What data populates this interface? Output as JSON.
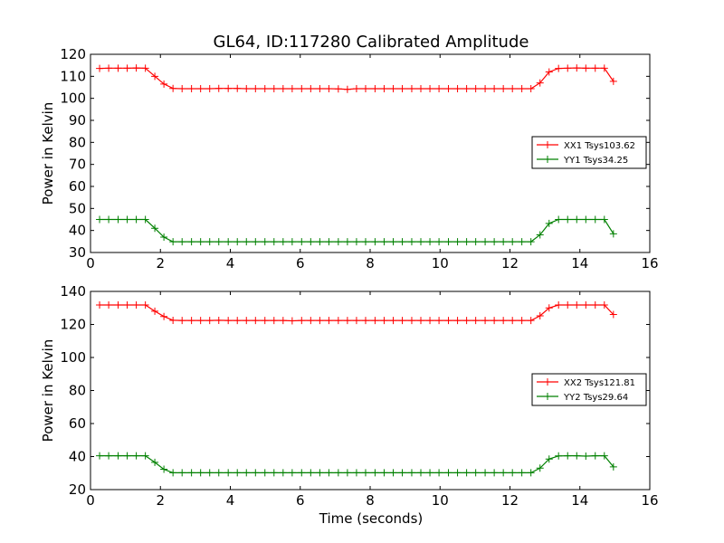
{
  "figure": {
    "title": "GL64, ID:117280 Calibrated Amplitude",
    "xlabel": "Time (seconds)"
  },
  "chart_data": [
    {
      "type": "line",
      "ylabel": "Power in Kelvin",
      "xlim": [
        0,
        16
      ],
      "ylim": [
        30,
        120
      ],
      "xticks": [
        "0",
        "2",
        "4",
        "6",
        "8",
        "10",
        "12",
        "14",
        "16"
      ],
      "yticks": [
        "30",
        "40",
        "50",
        "60",
        "70",
        "80",
        "90",
        "100",
        "110",
        "120"
      ],
      "legend_position": "center-right",
      "x": [
        0.26,
        0.52,
        0.79,
        1.05,
        1.31,
        1.57,
        1.84,
        2.1,
        2.36,
        2.62,
        2.89,
        3.15,
        3.41,
        3.67,
        3.94,
        4.2,
        4.46,
        4.72,
        4.99,
        5.25,
        5.51,
        5.77,
        6.04,
        6.3,
        6.56,
        6.82,
        7.09,
        7.35,
        7.61,
        7.87,
        8.14,
        8.4,
        8.66,
        8.92,
        9.19,
        9.45,
        9.71,
        9.97,
        10.24,
        10.5,
        10.76,
        11.02,
        11.29,
        11.55,
        11.81,
        12.07,
        12.34,
        12.6,
        12.86,
        13.12,
        13.39,
        13.65,
        13.91,
        14.17,
        14.44,
        14.7,
        14.96
      ],
      "series": [
        {
          "name": "XX1 Tsys103.62",
          "color": "#ff0000",
          "values": [
            113.6,
            113.7,
            113.7,
            113.7,
            113.8,
            113.7,
            110.0,
            106.5,
            104.5,
            104.4,
            104.4,
            104.4,
            104.4,
            104.5,
            104.5,
            104.5,
            104.4,
            104.4,
            104.4,
            104.4,
            104.4,
            104.4,
            104.4,
            104.4,
            104.4,
            104.4,
            104.3,
            104.1,
            104.4,
            104.4,
            104.4,
            104.4,
            104.4,
            104.4,
            104.4,
            104.4,
            104.4,
            104.4,
            104.4,
            104.4,
            104.4,
            104.4,
            104.4,
            104.4,
            104.4,
            104.4,
            104.4,
            104.4,
            107.0,
            112.0,
            113.6,
            113.7,
            113.8,
            113.7,
            113.7,
            113.7,
            107.7
          ]
        },
        {
          "name": "YY1 Tsys34.25",
          "color": "#008000",
          "values": [
            45.0,
            45.0,
            45.0,
            45.0,
            45.0,
            45.0,
            41.0,
            37.0,
            34.9,
            34.9,
            34.9,
            34.9,
            34.9,
            34.9,
            34.9,
            34.9,
            34.9,
            34.9,
            34.9,
            34.9,
            34.9,
            34.9,
            34.9,
            34.9,
            34.9,
            34.9,
            34.9,
            34.9,
            34.9,
            34.9,
            34.9,
            34.9,
            34.9,
            34.9,
            34.9,
            34.9,
            34.9,
            34.9,
            34.9,
            34.9,
            34.9,
            34.9,
            34.9,
            34.9,
            34.9,
            34.9,
            34.9,
            34.9,
            38.0,
            43.2,
            45.0,
            45.0,
            45.0,
            45.0,
            45.0,
            45.0,
            38.5
          ]
        }
      ]
    },
    {
      "type": "line",
      "ylabel": "Power in Kelvin",
      "xlim": [
        0,
        16
      ],
      "ylim": [
        20,
        140
      ],
      "xticks": [
        "0",
        "2",
        "4",
        "6",
        "8",
        "10",
        "12",
        "14",
        "16"
      ],
      "yticks": [
        "20",
        "40",
        "60",
        "80",
        "100",
        "120",
        "140"
      ],
      "legend_position": "center-right",
      "x": [
        0.26,
        0.52,
        0.79,
        1.05,
        1.31,
        1.57,
        1.84,
        2.1,
        2.36,
        2.62,
        2.89,
        3.15,
        3.41,
        3.67,
        3.94,
        4.2,
        4.46,
        4.72,
        4.99,
        5.25,
        5.51,
        5.77,
        6.04,
        6.3,
        6.56,
        6.82,
        7.09,
        7.35,
        7.61,
        7.87,
        8.14,
        8.4,
        8.66,
        8.92,
        9.19,
        9.45,
        9.71,
        9.97,
        10.24,
        10.5,
        10.76,
        11.02,
        11.29,
        11.55,
        11.81,
        12.07,
        12.34,
        12.6,
        12.86,
        13.12,
        13.39,
        13.65,
        13.91,
        14.17,
        14.44,
        14.7,
        14.96
      ],
      "series": [
        {
          "name": "XX2 Tsys121.81",
          "color": "#ff0000",
          "values": [
            131.8,
            131.8,
            131.8,
            131.8,
            131.8,
            131.8,
            128.0,
            124.8,
            122.5,
            122.4,
            122.4,
            122.4,
            122.4,
            122.5,
            122.4,
            122.4,
            122.4,
            122.4,
            122.4,
            122.4,
            122.4,
            122.2,
            122.4,
            122.4,
            122.4,
            122.4,
            122.4,
            122.4,
            122.4,
            122.4,
            122.4,
            122.4,
            122.4,
            122.4,
            122.4,
            122.4,
            122.4,
            122.4,
            122.4,
            122.4,
            122.4,
            122.4,
            122.4,
            122.4,
            122.4,
            122.4,
            122.4,
            122.4,
            125.2,
            130.0,
            131.8,
            131.8,
            131.8,
            131.8,
            131.8,
            131.8,
            126.0
          ]
        },
        {
          "name": "YY2 Tsys29.64",
          "color": "#008000",
          "values": [
            40.5,
            40.5,
            40.5,
            40.5,
            40.5,
            40.5,
            36.5,
            32.3,
            30.2,
            30.2,
            30.2,
            30.2,
            30.2,
            30.2,
            30.2,
            30.2,
            30.2,
            30.2,
            30.2,
            30.2,
            30.2,
            30.2,
            30.2,
            30.2,
            30.2,
            30.2,
            30.2,
            30.2,
            30.2,
            30.2,
            30.2,
            30.2,
            30.2,
            30.2,
            30.2,
            30.2,
            30.2,
            30.2,
            30.2,
            30.2,
            30.2,
            30.2,
            30.2,
            30.2,
            30.2,
            30.2,
            30.2,
            30.2,
            33.0,
            38.5,
            40.4,
            40.5,
            40.5,
            40.3,
            40.5,
            40.5,
            33.8
          ]
        }
      ]
    }
  ]
}
